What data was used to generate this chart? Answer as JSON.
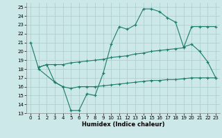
{
  "xlabel": "Humidex (Indice chaleur)",
  "xlim": [
    -0.5,
    23.5
  ],
  "ylim": [
    13,
    25.5
  ],
  "xticks": [
    0,
    1,
    2,
    3,
    4,
    5,
    6,
    7,
    8,
    9,
    10,
    11,
    12,
    13,
    14,
    15,
    16,
    17,
    18,
    19,
    20,
    21,
    22,
    23
  ],
  "yticks": [
    13,
    14,
    15,
    16,
    17,
    18,
    19,
    20,
    21,
    22,
    23,
    24,
    25
  ],
  "bg_color": "#cce8e8",
  "grid_color": "#aacccc",
  "line_color": "#1a7a6a",
  "curve1_x": [
    0,
    1,
    3,
    4,
    5,
    6,
    7,
    8,
    9,
    10,
    11,
    12,
    13,
    14,
    15,
    16,
    17,
    18,
    19,
    20,
    21,
    22,
    23
  ],
  "curve1_y": [
    21.0,
    18.0,
    16.5,
    16.0,
    13.3,
    13.3,
    15.2,
    15.0,
    17.5,
    20.8,
    22.8,
    22.5,
    23.0,
    24.8,
    24.8,
    24.5,
    23.8,
    23.3,
    20.5,
    20.8,
    20.0,
    18.8,
    17.0
  ],
  "curve2_x": [
    1,
    2,
    3,
    4,
    5,
    6,
    7,
    8,
    9,
    10,
    11,
    12,
    13,
    14,
    15,
    16,
    17,
    18,
    19,
    20,
    21,
    22,
    23
  ],
  "curve2_y": [
    18.2,
    18.5,
    16.5,
    16.0,
    15.8,
    16.0,
    16.0,
    16.0,
    16.1,
    16.2,
    16.3,
    16.4,
    16.5,
    16.6,
    16.7,
    16.7,
    16.8,
    16.8,
    16.9,
    17.0,
    17.0,
    17.0,
    17.0
  ],
  "curve3_x": [
    1,
    2,
    3,
    4,
    5,
    6,
    7,
    8,
    9,
    10,
    11,
    12,
    13,
    14,
    15,
    16,
    17,
    18,
    19,
    20,
    21,
    22,
    23
  ],
  "curve3_y": [
    18.2,
    18.5,
    18.5,
    18.5,
    18.7,
    18.8,
    18.9,
    19.0,
    19.1,
    19.3,
    19.4,
    19.5,
    19.7,
    19.8,
    20.0,
    20.1,
    20.2,
    20.3,
    20.4,
    22.8,
    22.8,
    22.8,
    22.8
  ]
}
